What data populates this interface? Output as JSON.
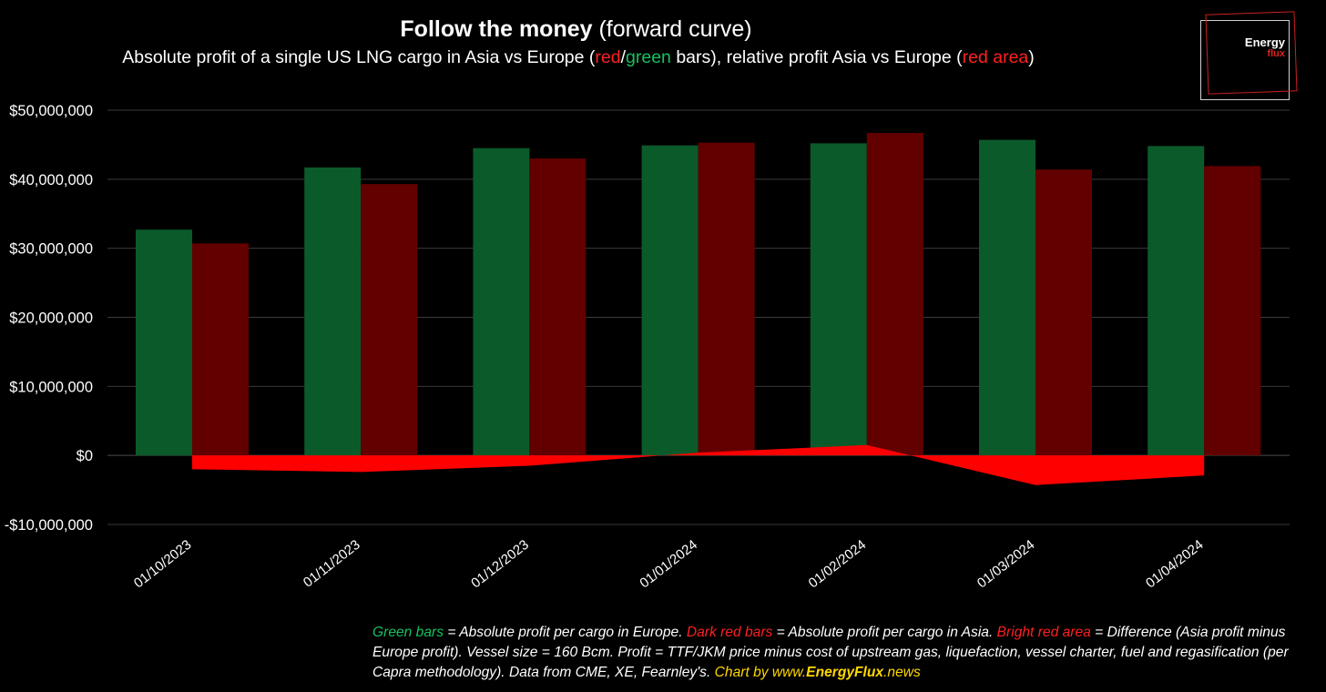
{
  "title": {
    "bold": "Follow the money",
    "rest": "(forward curve)"
  },
  "subtitle": {
    "part1": "Absolute profit of a single US LNG cargo in Asia vs Europe (",
    "red": "red",
    "slash": "/",
    "green": "green",
    "part2": " bars), relative profit Asia vs Europe (",
    "red_area": "red area",
    "part3": ")"
  },
  "logo": {
    "line1": "Energy",
    "line2": "flux"
  },
  "footnote": {
    "green_label": "Green bars",
    "t1": " = Absolute profit per cargo in Europe. ",
    "darkred_label": "Dark red bars",
    "t2": " = Absolute profit per cargo in Asia. ",
    "brightred_label": "Bright red area",
    "t3": " = Difference (Asia profit minus Europe profit). Vessel size = 160 Bcm. Profit = TTF/JKM price minus cost of upstream gas, liquefaction, vessel charter, fuel and regasification (per Capra methodology). Data from CME, XE, Fearnley's. ",
    "credit_pre": "Chart by www.",
    "credit_bold": "EnergyFlux",
    "credit_post": ".news"
  },
  "colors": {
    "europe": "#0b5a2a",
    "asia": "#620000",
    "difference": "#ff0000",
    "overlap": "#8a6a3a",
    "grid": "#3a3a3a"
  },
  "chart_data": {
    "type": "bar",
    "categories": [
      "01/10/2023",
      "01/11/2023",
      "01/12/2023",
      "01/01/2024",
      "01/02/2024",
      "01/03/2024",
      "01/04/2024"
    ],
    "series": [
      {
        "values": [
          32700000,
          41700000,
          44500000,
          44900000,
          45200000,
          45700000,
          44800000
        ]
      },
      {
        "values": [
          30700000,
          39300000,
          43000000,
          45300000,
          46700000,
          41400000,
          41900000
        ]
      },
      {
        "values": [
          -2000000,
          -2400000,
          -1500000,
          400000,
          1500000,
          -4300000,
          -2900000
        ]
      }
    ],
    "ylim": [
      -10000000,
      50000000
    ],
    "yticks": [
      -10000000,
      0,
      10000000,
      20000000,
      30000000,
      40000000,
      50000000
    ],
    "ytick_labels": [
      "-$10,000,000",
      "$0",
      "$10,000,000",
      "$20,000,000",
      "$30,000,000",
      "$40,000,000",
      "$50,000,000"
    ],
    "grid": true
  }
}
